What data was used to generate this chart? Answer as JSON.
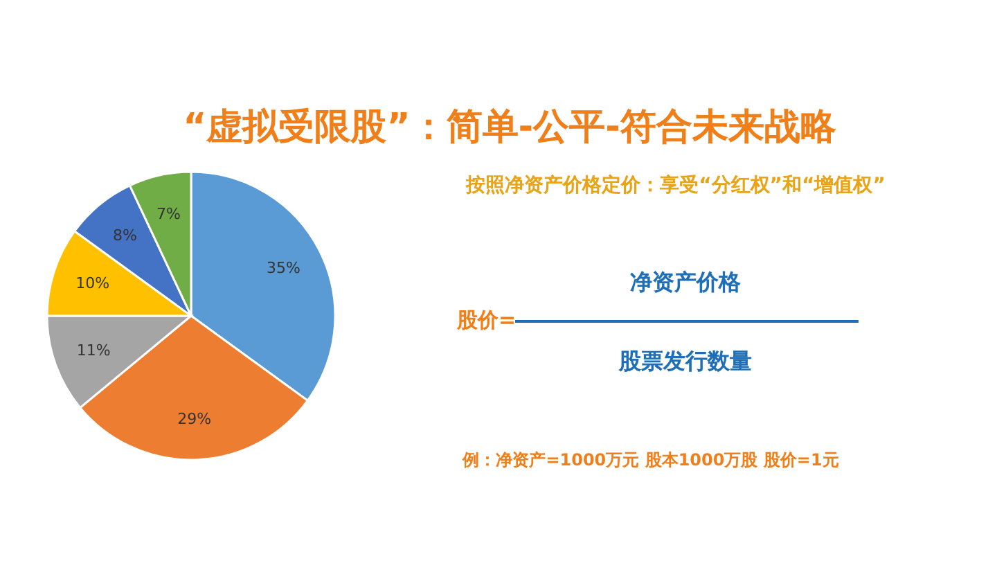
{
  "chart_data": {
    "type": "pie",
    "title": "“虚拟受限股”：简单-公平-符合未来战略",
    "subtitle": "按照净资产价格定价：享受“分红权”和“增值权”",
    "categories": [
      null,
      null,
      null,
      null,
      null,
      null
    ],
    "values": [
      35,
      29,
      11,
      10,
      8,
      7
    ],
    "colors": [
      "#5b9bd5",
      "#ed7d31",
      "#a5a5a5",
      "#ffc000",
      "#4472c4",
      "#70ad47"
    ],
    "value_labels": [
      "35%",
      "29%",
      "11%",
      "10%",
      "8%",
      "7%"
    ],
    "annotations": [
      "股价=",
      "净资产价格",
      "股票发行数量",
      "例：净资产=1000万元 股本1000万股 股价=1元"
    ]
  }
}
